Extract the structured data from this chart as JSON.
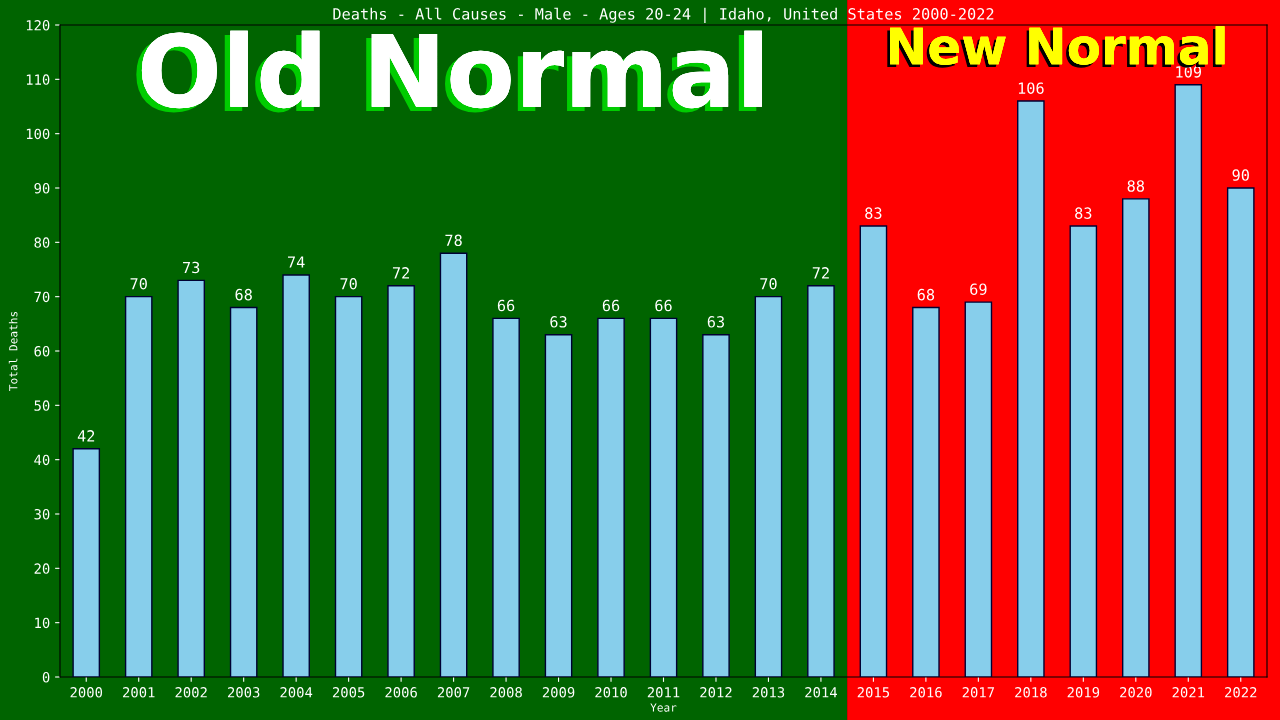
{
  "chart_data": {
    "type": "bar",
    "title": "Deaths - All Causes - Male - Ages 20-24 | Idaho, United States 2000-2022",
    "xlabel": "Year",
    "ylabel": "Total Deaths",
    "categories": [
      "2000",
      "2001",
      "2002",
      "2003",
      "2004",
      "2005",
      "2006",
      "2007",
      "2008",
      "2009",
      "2010",
      "2011",
      "2012",
      "2013",
      "2014",
      "2015",
      "2016",
      "2017",
      "2018",
      "2019",
      "2020",
      "2021",
      "2022"
    ],
    "values": [
      42,
      70,
      73,
      68,
      74,
      70,
      72,
      78,
      66,
      63,
      66,
      66,
      63,
      70,
      72,
      83,
      68,
      69,
      106,
      83,
      88,
      109,
      90
    ],
    "color": "#87ceeb",
    "ylim": [
      0,
      120
    ],
    "yticks": [
      0,
      10,
      20,
      30,
      40,
      50,
      60,
      70,
      80,
      90,
      100,
      110,
      120
    ],
    "data_labels": true,
    "grid": false,
    "legend": false,
    "bands": [
      {
        "axis": "x",
        "from": "2000",
        "to": "2014",
        "label": "Old Normal",
        "color": "#006400"
      },
      {
        "axis": "x",
        "from": "2015",
        "to": "2022",
        "label": "New Normal",
        "color": "#ff0000"
      }
    ]
  }
}
